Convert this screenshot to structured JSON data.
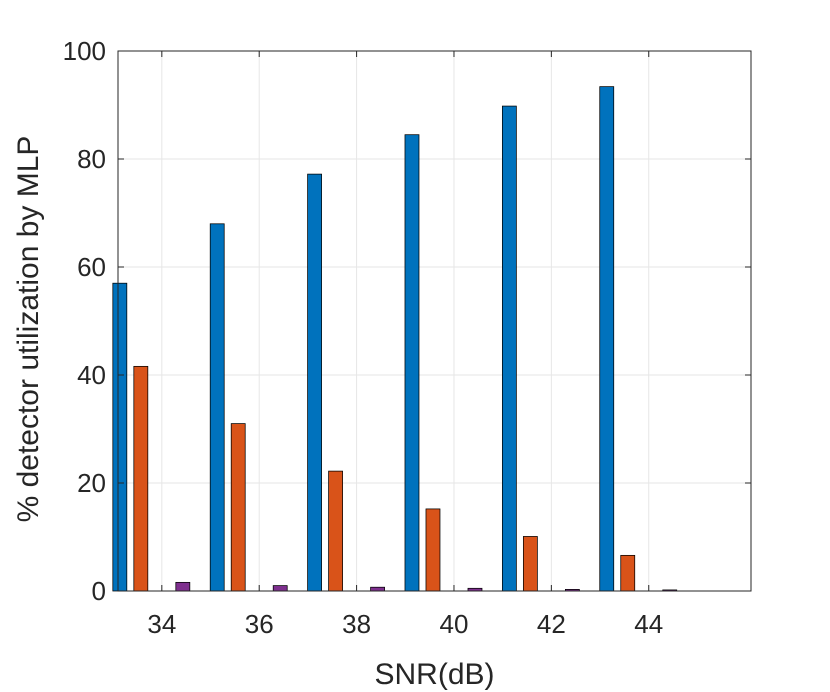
{
  "chart_data": {
    "type": "bar",
    "title": "",
    "xlabel": "SNR(dB)",
    "ylabel": "% detector utilization by MLP",
    "categories": [
      "34",
      "36",
      "38",
      "40",
      "42",
      "44"
    ],
    "ylim": [
      0,
      100
    ],
    "yticks": [
      "0",
      "20",
      "40",
      "60",
      "80",
      "100"
    ],
    "grid": true,
    "legend": "none",
    "series": [
      {
        "color": "#0072BD",
        "values": [
          57,
          68,
          77.2,
          84.5,
          89.8,
          93.4
        ]
      },
      {
        "color": "#D95319",
        "values": [
          41.6,
          31,
          22.2,
          15.2,
          10.1,
          6.6
        ]
      },
      {
        "color": "#EDB120",
        "values": [
          0,
          0,
          0,
          0,
          0,
          0
        ]
      },
      {
        "color": "#7E2F8E",
        "values": [
          1.6,
          1,
          0.7,
          0.5,
          0.3,
          0.2
        ]
      },
      {
        "color": "#77AC30",
        "values": [
          0,
          0,
          0,
          0,
          0,
          0
        ]
      }
    ]
  }
}
